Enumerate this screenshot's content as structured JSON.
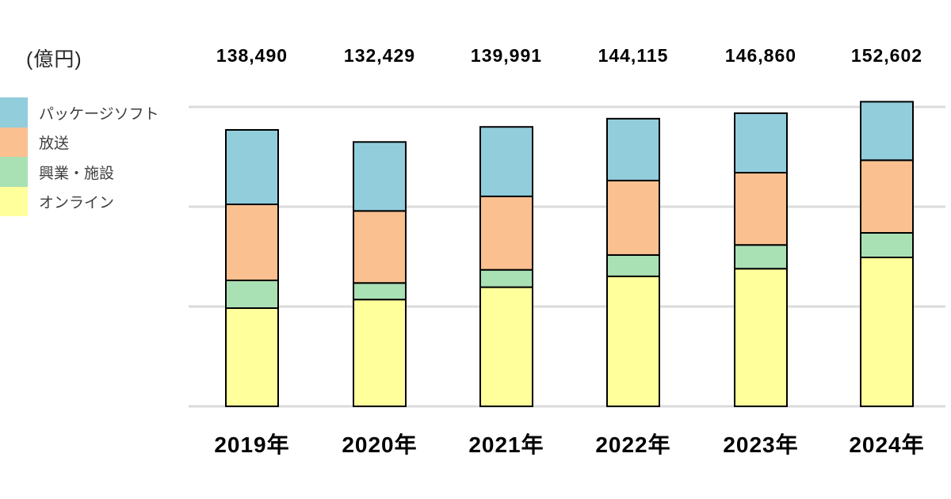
{
  "unit_label": "(億円)",
  "legend": {
    "position": "upper-left",
    "items": [
      {
        "label": "パッケージソフト",
        "key": "package-soft",
        "color": "#92CDDC"
      },
      {
        "label": "放送",
        "key": "broadcast",
        "color": "#FAC090"
      },
      {
        "label": "興業・施設",
        "key": "event-facility",
        "color": "#A9E0B4"
      },
      {
        "label": "オンライン",
        "key": "online",
        "color": "#FFFF9C"
      }
    ]
  },
  "chart_data": {
    "type": "bar",
    "stacked": true,
    "unit": "億円",
    "categories": [
      "2019年",
      "2020年",
      "2021年",
      "2022年",
      "2023年",
      "2024年"
    ],
    "totals": [
      138490,
      132429,
      139991,
      144115,
      146860,
      152602
    ],
    "totals_display": [
      "138,490",
      "132,429",
      "139,991",
      "144,115",
      "146,860",
      "152,602"
    ],
    "series": [
      {
        "name": "パッケージソフト",
        "key": "package-soft",
        "color": "#92CDDC",
        "values": [
          37290,
          34529,
          34800,
          31000,
          29800,
          29300
        ]
      },
      {
        "name": "放送",
        "key": "broadcast",
        "color": "#FAC090",
        "values": [
          38100,
          36100,
          36800,
          37300,
          36200,
          36400
        ]
      },
      {
        "name": "興業・施設",
        "key": "event-facility",
        "color": "#A9E0B4",
        "values": [
          13900,
          8300,
          8700,
          10700,
          11900,
          12300
        ]
      },
      {
        "name": "オンライン",
        "key": "online",
        "color": "#FFFF9C",
        "values": [
          49200,
          53500,
          59691,
          65115,
          68960,
          74602
        ]
      }
    ],
    "stack_order_bottom_to_top": [
      "オンライン",
      "興業・施設",
      "放送",
      "パッケージソフト"
    ],
    "values_note": "series values estimated from bar heights; per-year totals are labeled on chart",
    "ylim": [
      0,
      150000
    ],
    "gridline_values": [
      0,
      50000,
      100000,
      150000
    ],
    "grid": true,
    "xlabel": "",
    "ylabel": "(億円)",
    "legend_position": "upper-left"
  },
  "colors": {
    "background": "#FFFFFF",
    "gridline": "#DBDBDB",
    "bar_border": "#000000",
    "value_text": "#000000",
    "axis_text": "#000000",
    "legend_text": "#3F3F3F"
  }
}
